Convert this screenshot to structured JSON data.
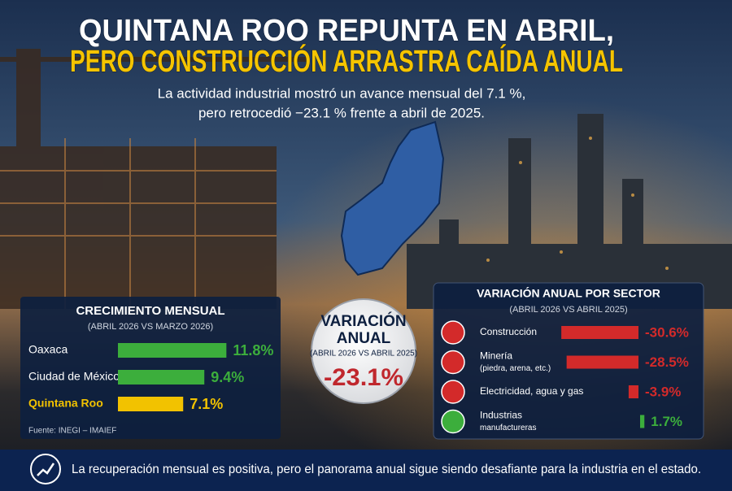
{
  "header": {
    "title_lines": [
      "QUINTANA ROO REPUNTA EN ABRIL,",
      "PERO CONSTRUCCIÓN ARRASTRA CAÍDA ANUAL"
    ],
    "subtitle_lines": [
      "La actividad industrial mostró un avance mensual del 7.1 %,",
      "pero retrocedió −23.1 % frente a abril de 2025."
    ]
  },
  "monthly": {
    "title": "CRECIMIENTO MENSUAL",
    "subtitle": "(ABRIL 2026 VS MARZO 2026)",
    "categories": [
      "Oaxaca",
      "Ciudad de México",
      "Quintana Roo"
    ],
    "values": [
      11.8,
      9.4,
      7.1
    ],
    "value_labels": [
      "11.8%",
      "9.4%",
      "7.1%"
    ],
    "colors": [
      "#3cae3c",
      "#3cae3c",
      "#f2c200"
    ],
    "source": "Fuente: INEGI – IMAIEF"
  },
  "annual": {
    "title_lines": [
      "VARIACIÓN",
      "ANUAL"
    ],
    "subtitle": "(ABRIL 2026 VS ABRIL 2025)",
    "value": "-23.1%"
  },
  "sectors": {
    "title": "VARIACIÓN ANUAL POR SECTOR",
    "subtitle": "(ABRIL 2026 VS ABRIL 2025)",
    "categories": [
      [
        "Construcción"
      ],
      [
        "Minería",
        "(piedra, arena, etc.)"
      ],
      [
        "Electricidad, agua y gas"
      ],
      [
        "Industrias",
        "manufactureras"
      ]
    ],
    "values": [
      -30.6,
      -28.5,
      -3.9,
      1.7
    ],
    "value_labels": [
      "-30.6%",
      "-28.5%",
      "-3.9%",
      "1.7%"
    ],
    "colors": [
      "#d32a2a",
      "#d32a2a",
      "#d32a2a",
      "#3cae3c"
    ]
  },
  "footer": {
    "text": "La recuperación mensual es positiva, pero el panorama anual sigue siendo desafiante para la industria en el estado."
  }
}
